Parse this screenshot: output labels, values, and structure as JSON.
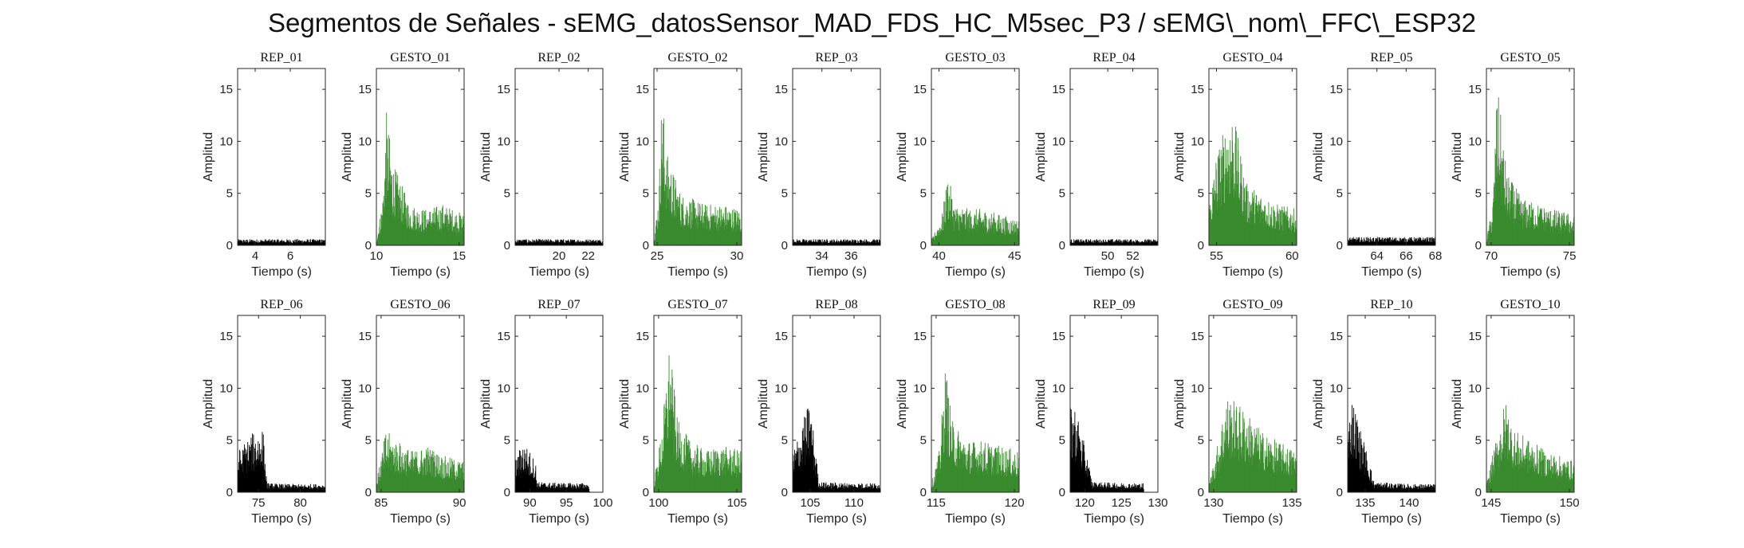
{
  "title": "Segmentos de Señales - sEMG_datosSensor_MAD_FDS_HC_M5sec_P3 / sEMG\\_nom\\_FFC\\_ESP32",
  "colors": {
    "rep": "#000000",
    "gesto": "#3a8a2f",
    "axis": "#262626"
  },
  "chart_data": [
    {
      "type": "area",
      "title": "REP_01",
      "xlabel": "Tiempo (s)",
      "ylabel": "Amplitud",
      "xlim": [
        3,
        8
      ],
      "ylim": [
        0,
        17
      ],
      "xticks": [
        4,
        6
      ],
      "yticks": [
        0,
        5,
        10,
        15
      ],
      "color": "rep",
      "series": [
        {
          "x": [
            3,
            8
          ],
          "y": [
            0.6,
            0.6
          ]
        }
      ]
    },
    {
      "type": "area",
      "title": "GESTO_01",
      "xlabel": "Tiempo (s)",
      "ylabel": "Amplitud",
      "xlim": [
        10,
        15.3
      ],
      "ylim": [
        0,
        17
      ],
      "xticks": [
        10,
        15
      ],
      "yticks": [
        0,
        5,
        10,
        15
      ],
      "color": "gesto",
      "series": [
        {
          "x": [
            10,
            10.4,
            10.6,
            11,
            12,
            13,
            14,
            15.3
          ],
          "y": [
            0.5,
            5,
            13,
            8,
            4,
            3.5,
            4,
            3
          ]
        }
      ]
    },
    {
      "type": "area",
      "title": "REP_02",
      "xlabel": "Tiempo (s)",
      "ylabel": "Amplitud",
      "xlim": [
        17,
        23
      ],
      "ylim": [
        0,
        17
      ],
      "xticks": [
        20,
        22
      ],
      "yticks": [
        0,
        5,
        10,
        15
      ],
      "color": "rep",
      "series": [
        {
          "x": [
            17,
            23
          ],
          "y": [
            0.6,
            0.6
          ]
        }
      ]
    },
    {
      "type": "area",
      "title": "GESTO_02",
      "xlabel": "Tiempo (s)",
      "ylabel": "Amplitud",
      "xlim": [
        24.8,
        30.3
      ],
      "ylim": [
        0,
        17
      ],
      "xticks": [
        25,
        30
      ],
      "yticks": [
        0,
        5,
        10,
        15
      ],
      "color": "gesto",
      "series": [
        {
          "x": [
            24.8,
            25.1,
            25.3,
            25.6,
            26.5,
            28,
            29,
            30.3
          ],
          "y": [
            0.5,
            5,
            15,
            9,
            5,
            4,
            4,
            3.5
          ]
        }
      ]
    },
    {
      "type": "area",
      "title": "REP_03",
      "xlabel": "Tiempo (s)",
      "ylabel": "Amplitud",
      "xlim": [
        32,
        38
      ],
      "ylim": [
        0,
        17
      ],
      "xticks": [
        34,
        36
      ],
      "yticks": [
        0,
        5,
        10,
        15
      ],
      "color": "rep",
      "series": [
        {
          "x": [
            32,
            38
          ],
          "y": [
            0.6,
            0.6
          ]
        }
      ]
    },
    {
      "type": "area",
      "title": "GESTO_03",
      "xlabel": "Tiempo (s)",
      "ylabel": "Amplitud",
      "xlim": [
        39.5,
        45.3
      ],
      "ylim": [
        0,
        17
      ],
      "xticks": [
        40,
        45
      ],
      "yticks": [
        0,
        5,
        10,
        15
      ],
      "color": "gesto",
      "series": [
        {
          "x": [
            39.5,
            40.2,
            40.6,
            41,
            42,
            43,
            44,
            45.3
          ],
          "y": [
            0.5,
            3,
            7,
            4,
            3.5,
            3.5,
            3,
            2.5
          ]
        }
      ]
    },
    {
      "type": "area",
      "title": "REP_04",
      "xlabel": "Tiempo (s)",
      "ylabel": "Amplitud",
      "xlim": [
        47,
        54
      ],
      "ylim": [
        0,
        17
      ],
      "xticks": [
        50,
        52
      ],
      "yticks": [
        0,
        5,
        10,
        15
      ],
      "color": "rep",
      "series": [
        {
          "x": [
            47,
            54
          ],
          "y": [
            0.6,
            0.6
          ]
        }
      ]
    },
    {
      "type": "area",
      "title": "GESTO_04",
      "xlabel": "Tiempo (s)",
      "ylabel": "Amplitud",
      "xlim": [
        54.5,
        60.3
      ],
      "ylim": [
        0,
        17
      ],
      "xticks": [
        55,
        60
      ],
      "yticks": [
        0,
        5,
        10,
        15
      ],
      "color": "gesto",
      "series": [
        {
          "x": [
            54.5,
            55,
            56,
            57,
            58,
            59,
            60.3
          ],
          "y": [
            4,
            9,
            13.5,
            6,
            5,
            4,
            3.5
          ]
        }
      ]
    },
    {
      "type": "area",
      "title": "REP_05",
      "xlabel": "Tiempo (s)",
      "ylabel": "Amplitud",
      "xlim": [
        62,
        68
      ],
      "ylim": [
        0,
        17
      ],
      "xticks": [
        64,
        66,
        68
      ],
      "yticks": [
        0,
        5,
        10,
        15
      ],
      "color": "rep",
      "series": [
        {
          "x": [
            62,
            68
          ],
          "y": [
            0.8,
            0.8
          ]
        }
      ]
    },
    {
      "type": "area",
      "title": "GESTO_05",
      "xlabel": "Tiempo (s)",
      "ylabel": "Amplitud",
      "xlim": [
        69.7,
        75.3
      ],
      "ylim": [
        0,
        17
      ],
      "xticks": [
        70,
        75
      ],
      "yticks": [
        0,
        5,
        10,
        15
      ],
      "color": "gesto",
      "series": [
        {
          "x": [
            69.7,
            70.1,
            70.4,
            71,
            72,
            73,
            74,
            75.3
          ],
          "y": [
            0.5,
            4,
            15.5,
            7,
            4.5,
            4,
            3.5,
            3
          ]
        }
      ]
    },
    {
      "type": "area",
      "title": "REP_06",
      "xlabel": "Tiempo (s)",
      "ylabel": "Amplitud",
      "xlim": [
        72.5,
        83
      ],
      "ylim": [
        0,
        17
      ],
      "xticks": [
        75,
        80
      ],
      "yticks": [
        0,
        5,
        10,
        15
      ],
      "color": "rep",
      "series": [
        {
          "x": [
            72.5,
            74,
            75.5,
            76,
            78,
            83
          ],
          "y": [
            4,
            5.5,
            6.5,
            0.9,
            0.8,
            0.8
          ]
        }
      ]
    },
    {
      "type": "area",
      "title": "GESTO_06",
      "xlabel": "Tiempo (s)",
      "ylabel": "Amplitud",
      "xlim": [
        84.7,
        90.3
      ],
      "ylim": [
        0,
        17
      ],
      "xticks": [
        85,
        90
      ],
      "yticks": [
        0,
        5,
        10,
        15
      ],
      "color": "gesto",
      "series": [
        {
          "x": [
            84.7,
            85.3,
            86,
            87,
            88,
            89,
            90.3
          ],
          "y": [
            1,
            6,
            5,
            4,
            4.5,
            3.5,
            3
          ]
        }
      ]
    },
    {
      "type": "area",
      "title": "REP_07",
      "xlabel": "Tiempo (s)",
      "ylabel": "Amplitud",
      "xlim": [
        88,
        100
      ],
      "ylim": [
        0,
        17
      ],
      "xticks": [
        90,
        95,
        100
      ],
      "yticks": [
        0,
        5,
        10,
        15
      ],
      "color": "rep",
      "series": [
        {
          "x": [
            88,
            89,
            90,
            90.8,
            91,
            95,
            98,
            98.2
          ],
          "y": [
            3,
            5,
            4,
            3,
            1,
            0.9,
            0.9,
            0
          ]
        }
      ]
    },
    {
      "type": "area",
      "title": "GESTO_07",
      "xlabel": "Tiempo (s)",
      "ylabel": "Amplitud",
      "xlim": [
        99.7,
        105.3
      ],
      "ylim": [
        0,
        17
      ],
      "xticks": [
        100,
        105
      ],
      "yticks": [
        0,
        5,
        10,
        15
      ],
      "color": "gesto",
      "series": [
        {
          "x": [
            99.7,
            100.2,
            100.7,
            101.2,
            102,
            103,
            104,
            105.3
          ],
          "y": [
            1,
            6,
            14.5,
            7,
            5,
            4,
            4.5,
            4
          ]
        }
      ]
    },
    {
      "type": "area",
      "title": "REP_08",
      "xlabel": "Tiempo (s)",
      "ylabel": "Amplitud",
      "xlim": [
        103,
        113
      ],
      "ylim": [
        0,
        17
      ],
      "xticks": [
        105,
        110
      ],
      "yticks": [
        0,
        5,
        10,
        15
      ],
      "color": "rep",
      "series": [
        {
          "x": [
            103,
            104,
            105,
            105.5,
            106,
            110,
            113
          ],
          "y": [
            4,
            6.5,
            9,
            5,
            1,
            0.9,
            0.9
          ]
        }
      ]
    },
    {
      "type": "area",
      "title": "GESTO_08",
      "xlabel": "Tiempo (s)",
      "ylabel": "Amplitud",
      "xlim": [
        114.7,
        120.3
      ],
      "ylim": [
        0,
        17
      ],
      "xticks": [
        115,
        120
      ],
      "yticks": [
        0,
        5,
        10,
        15
      ],
      "color": "gesto",
      "series": [
        {
          "x": [
            114.7,
            115.2,
            115.6,
            116,
            117,
            118,
            119,
            120.3
          ],
          "y": [
            0.8,
            4,
            12.5,
            7,
            5,
            5,
            4.5,
            4
          ]
        }
      ]
    },
    {
      "type": "area",
      "title": "REP_09",
      "xlabel": "Tiempo (s)",
      "ylabel": "Amplitud",
      "xlim": [
        118,
        130
      ],
      "ylim": [
        0,
        17
      ],
      "xticks": [
        120,
        125,
        130
      ],
      "yticks": [
        0,
        5,
        10,
        15
      ],
      "color": "rep",
      "series": [
        {
          "x": [
            118,
            118.5,
            119.5,
            120.5,
            121,
            125,
            128,
            128.1
          ],
          "y": [
            8,
            9,
            6,
            3,
            1,
            0.9,
            0.9,
            0
          ]
        }
      ]
    },
    {
      "type": "area",
      "title": "GESTO_09",
      "xlabel": "Tiempo (s)",
      "ylabel": "Amplitud",
      "xlim": [
        129.7,
        135.3
      ],
      "ylim": [
        0,
        17
      ],
      "xticks": [
        130,
        135
      ],
      "yticks": [
        0,
        5,
        10,
        15
      ],
      "color": "gesto",
      "series": [
        {
          "x": [
            129.7,
            130.3,
            130.8,
            132,
            133,
            134,
            135.3
          ],
          "y": [
            0.8,
            5,
            9.5,
            8,
            6,
            5,
            4
          ]
        }
      ]
    },
    {
      "type": "area",
      "title": "REP_10",
      "xlabel": "Tiempo (s)",
      "ylabel": "Amplitud",
      "xlim": [
        133,
        143
      ],
      "ylim": [
        0,
        17
      ],
      "xticks": [
        135,
        140
      ],
      "yticks": [
        0,
        5,
        10,
        15
      ],
      "color": "rep",
      "series": [
        {
          "x": [
            133,
            133.5,
            134.5,
            135.5,
            136,
            140,
            143
          ],
          "y": [
            6,
            9.5,
            6,
            3,
            1,
            0.8,
            0.8
          ]
        }
      ]
    },
    {
      "type": "area",
      "title": "GESTO_10",
      "xlabel": "Tiempo (s)",
      "ylabel": "Amplitud",
      "xlim": [
        144.7,
        150.3
      ],
      "ylim": [
        0,
        17
      ],
      "xticks": [
        145,
        150
      ],
      "yticks": [
        0,
        5,
        10,
        15
      ],
      "color": "gesto",
      "series": [
        {
          "x": [
            144.7,
            145.3,
            145.9,
            146.5,
            147.5,
            148.5,
            150.3
          ],
          "y": [
            0.8,
            5,
            9,
            6,
            5,
            4,
            3
          ]
        }
      ]
    }
  ]
}
